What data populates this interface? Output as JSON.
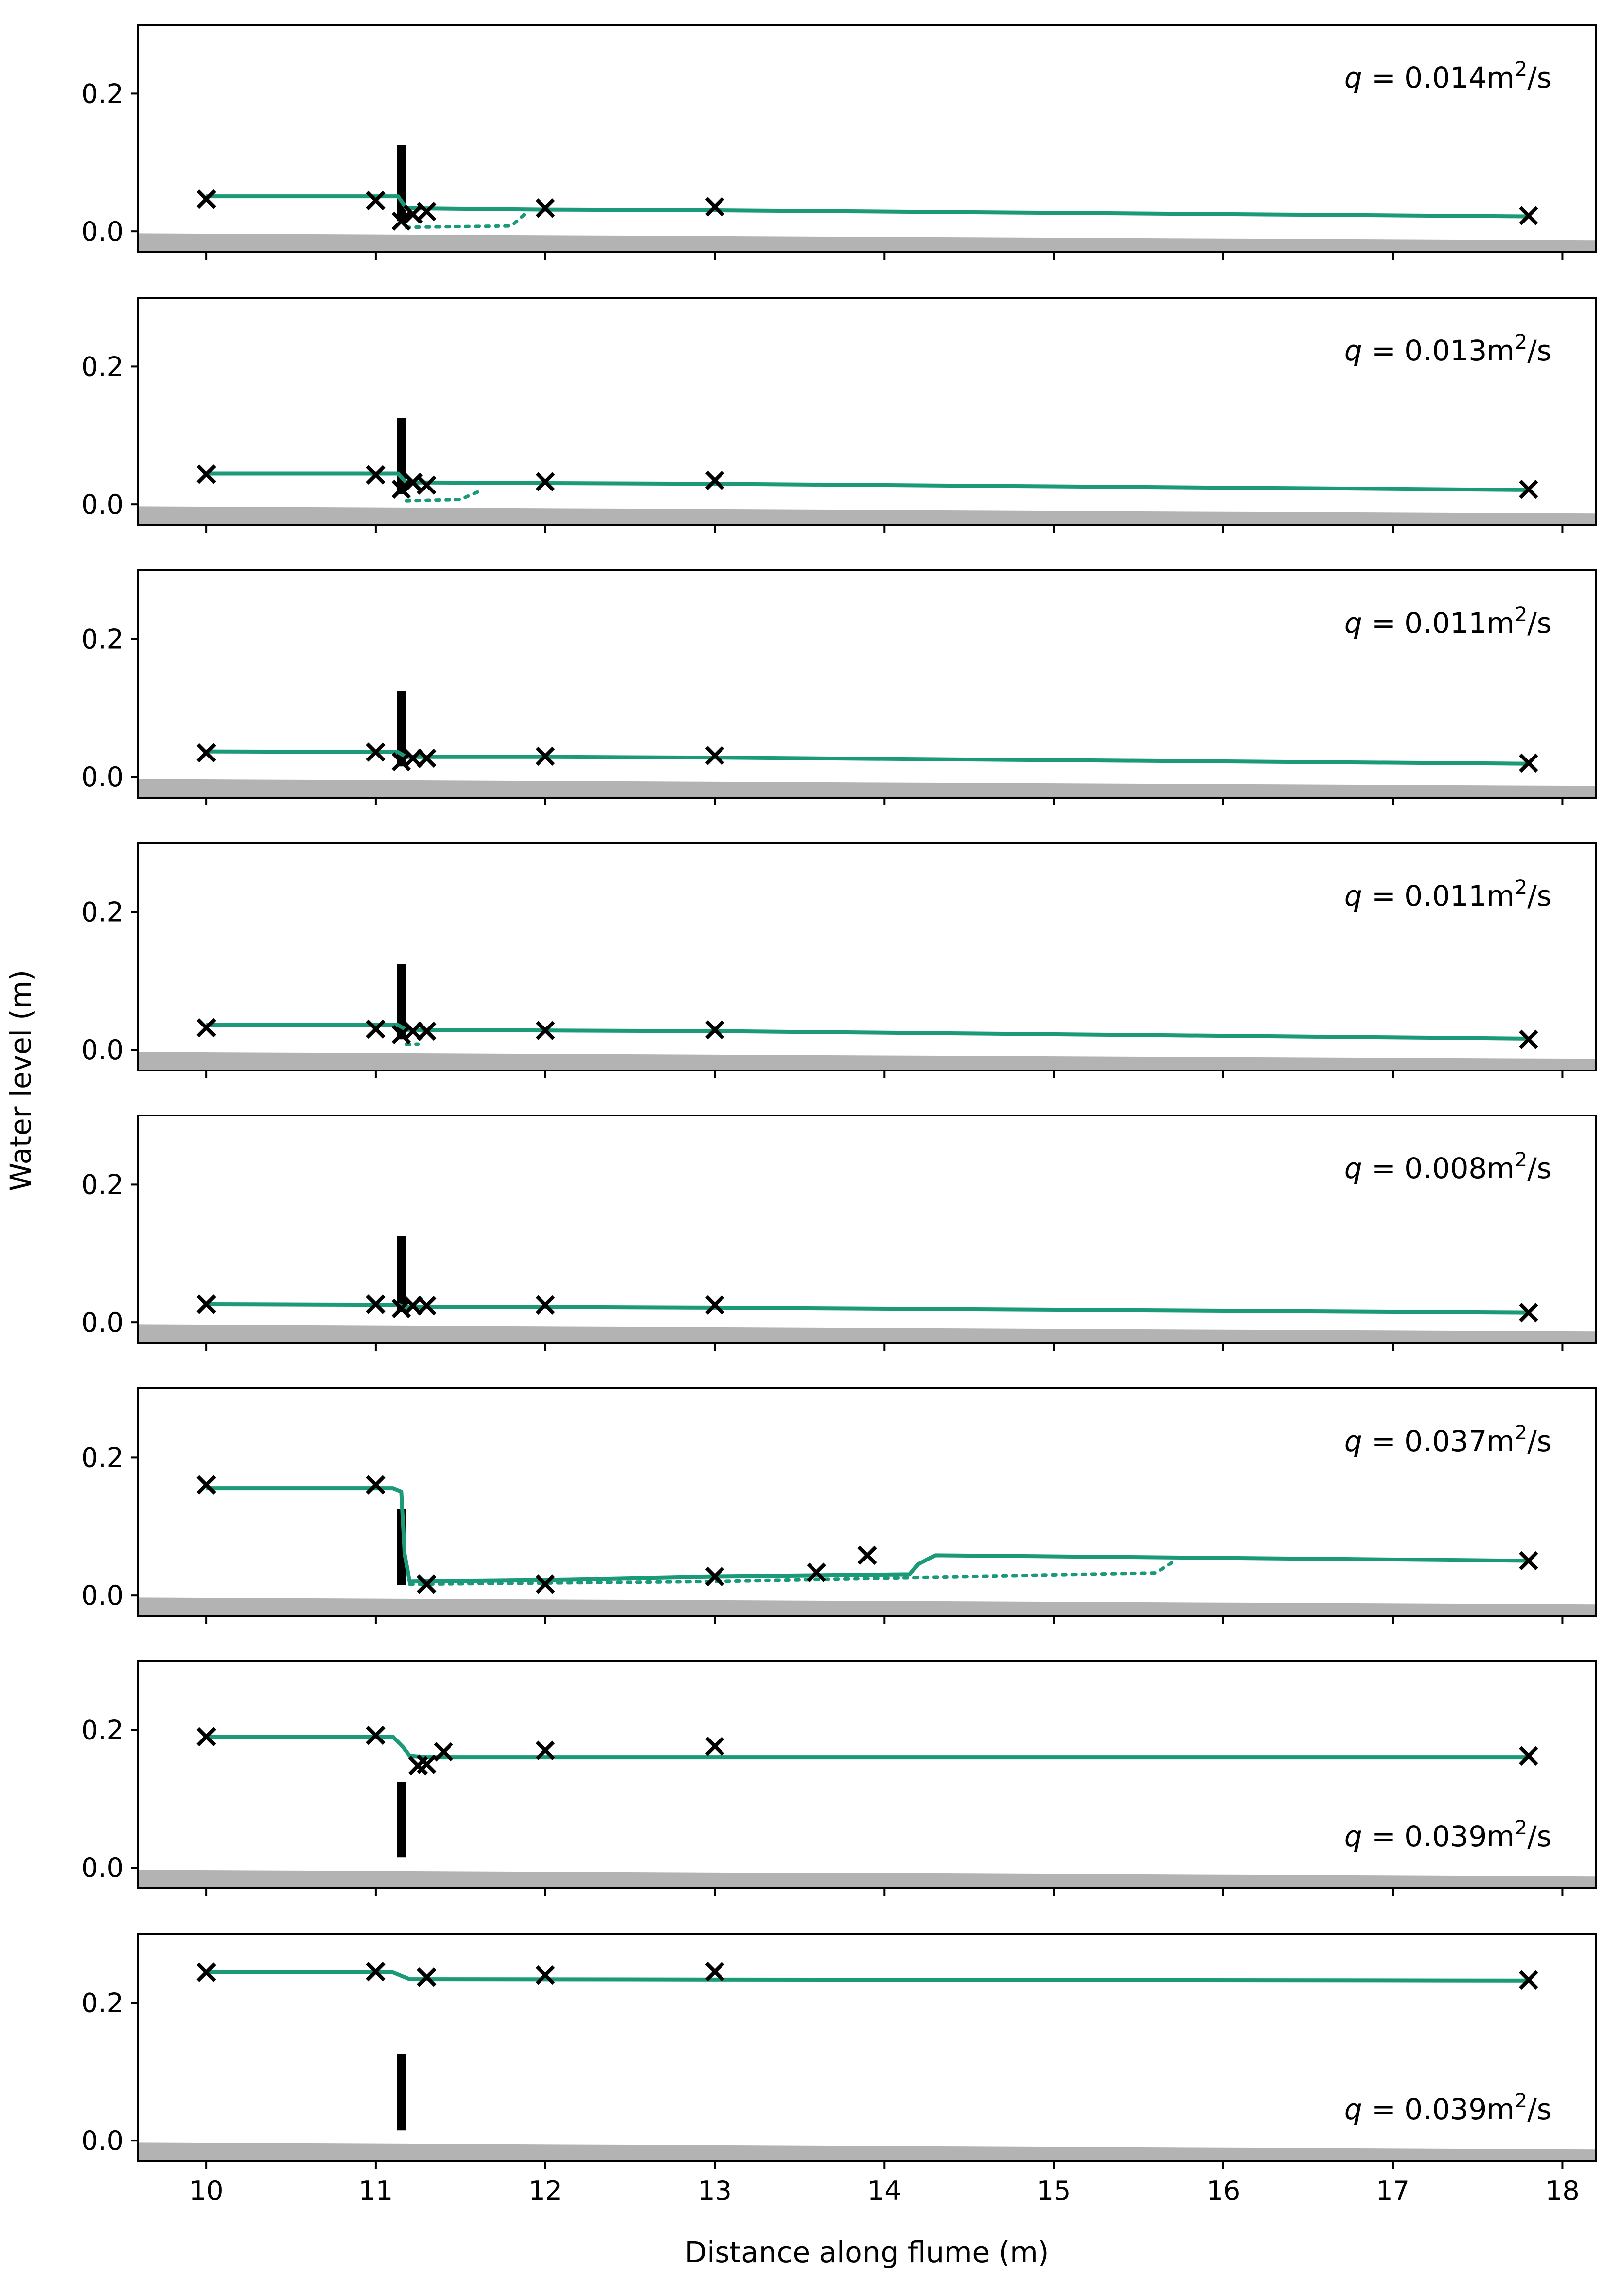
{
  "chart_data": {
    "type": "line",
    "xlabel": "Distance along flume (m)",
    "ylabel": "Water level (m)",
    "xlim": [
      9.6,
      18.2
    ],
    "ylim": [
      -0.03,
      0.3
    ],
    "xticks": [
      10,
      11,
      12,
      13,
      14,
      15,
      16,
      17,
      18
    ],
    "yticks": [
      0.0,
      0.2
    ],
    "colors": {
      "model": "#1a9a78",
      "obs": "#000000",
      "bed": "#b3b3b3",
      "weir": "#000000"
    },
    "weir": {
      "x": 11.15,
      "bottom": 0.015,
      "top": 0.125
    },
    "bed": {
      "x": [
        9.6,
        18.2
      ],
      "y": [
        -0.003,
        -0.013
      ]
    },
    "panels": [
      {
        "q_label": "0.014m",
        "q_prefix": "q",
        "q_eq": " = ",
        "q_sup": "2",
        "q_unit": "/s",
        "label_position": "top-right",
        "solid": [
          [
            10.0,
            0.051
          ],
          [
            11.13,
            0.051
          ],
          [
            11.18,
            0.034
          ],
          [
            12.0,
            0.032
          ],
          [
            13.0,
            0.031
          ],
          [
            17.8,
            0.022
          ]
        ],
        "dotted": [
          [
            11.18,
            0.006
          ],
          [
            11.8,
            0.008
          ],
          [
            11.9,
            0.03
          ]
        ],
        "obs": [
          [
            10.0,
            0.047
          ],
          [
            11.0,
            0.045
          ],
          [
            11.15,
            0.015
          ],
          [
            11.22,
            0.025
          ],
          [
            11.3,
            0.029
          ],
          [
            12.0,
            0.034
          ],
          [
            13.0,
            0.036
          ],
          [
            17.8,
            0.023
          ]
        ]
      },
      {
        "q_label": "0.013m",
        "q_prefix": "q",
        "q_eq": " = ",
        "q_sup": "2",
        "q_unit": "/s",
        "label_position": "top-right",
        "solid": [
          [
            10.0,
            0.045
          ],
          [
            11.13,
            0.045
          ],
          [
            11.18,
            0.032
          ],
          [
            12.0,
            0.031
          ],
          [
            13.0,
            0.03
          ],
          [
            17.8,
            0.021
          ]
        ],
        "dotted": [
          [
            11.18,
            0.005
          ],
          [
            11.5,
            0.007
          ],
          [
            11.6,
            0.018
          ]
        ],
        "obs": [
          [
            10.0,
            0.044
          ],
          [
            11.0,
            0.043
          ],
          [
            11.15,
            0.022
          ],
          [
            11.22,
            0.032
          ],
          [
            11.3,
            0.028
          ],
          [
            12.0,
            0.033
          ],
          [
            13.0,
            0.035
          ],
          [
            17.8,
            0.022
          ]
        ]
      },
      {
        "q_label": "0.011m",
        "q_prefix": "q",
        "q_eq": " = ",
        "q_sup": "2",
        "q_unit": "/s",
        "label_position": "top-right",
        "solid": [
          [
            10.0,
            0.037
          ],
          [
            11.13,
            0.036
          ],
          [
            11.18,
            0.029
          ],
          [
            12.0,
            0.029
          ],
          [
            13.0,
            0.028
          ],
          [
            17.8,
            0.019
          ]
        ],
        "dotted": [],
        "obs": [
          [
            10.0,
            0.035
          ],
          [
            11.0,
            0.036
          ],
          [
            11.15,
            0.022
          ],
          [
            11.22,
            0.027
          ],
          [
            11.3,
            0.027
          ],
          [
            12.0,
            0.03
          ],
          [
            13.0,
            0.031
          ],
          [
            17.8,
            0.02
          ]
        ]
      },
      {
        "q_label": "0.011m",
        "q_prefix": "q",
        "q_eq": " = ",
        "q_sup": "2",
        "q_unit": "/s",
        "label_position": "top-right",
        "solid": [
          [
            10.0,
            0.036
          ],
          [
            11.13,
            0.036
          ],
          [
            11.18,
            0.029
          ],
          [
            12.0,
            0.028
          ],
          [
            13.0,
            0.027
          ],
          [
            17.8,
            0.016
          ]
        ],
        "dotted": [
          [
            11.18,
            0.008
          ],
          [
            11.25,
            0.008
          ]
        ],
        "obs": [
          [
            10.0,
            0.032
          ],
          [
            11.0,
            0.03
          ],
          [
            11.15,
            0.022
          ],
          [
            11.22,
            0.027
          ],
          [
            11.3,
            0.027
          ],
          [
            12.0,
            0.028
          ],
          [
            13.0,
            0.029
          ],
          [
            17.8,
            0.015
          ]
        ]
      },
      {
        "q_label": "0.008m",
        "q_prefix": "q",
        "q_eq": " = ",
        "q_sup": "2",
        "q_unit": "/s",
        "label_position": "top-right",
        "solid": [
          [
            10.0,
            0.026
          ],
          [
            11.13,
            0.025
          ],
          [
            11.18,
            0.022
          ],
          [
            12.0,
            0.022
          ],
          [
            13.0,
            0.021
          ],
          [
            17.8,
            0.014
          ]
        ],
        "dotted": [],
        "obs": [
          [
            10.0,
            0.026
          ],
          [
            11.0,
            0.026
          ],
          [
            11.15,
            0.02
          ],
          [
            11.22,
            0.024
          ],
          [
            11.3,
            0.024
          ],
          [
            12.0,
            0.025
          ],
          [
            13.0,
            0.025
          ],
          [
            17.8,
            0.014
          ]
        ]
      },
      {
        "q_label": "0.037m",
        "q_prefix": "q",
        "q_eq": " = ",
        "q_sup": "2",
        "q_unit": "/s",
        "label_position": "top-right",
        "solid": [
          [
            10.0,
            0.155
          ],
          [
            11.1,
            0.155
          ],
          [
            11.15,
            0.15
          ],
          [
            11.17,
            0.06
          ],
          [
            11.2,
            0.02
          ],
          [
            12.0,
            0.022
          ],
          [
            13.0,
            0.027
          ],
          [
            14.15,
            0.03
          ],
          [
            14.2,
            0.045
          ],
          [
            14.3,
            0.058
          ],
          [
            17.8,
            0.05
          ]
        ],
        "dotted": [
          [
            11.2,
            0.016
          ],
          [
            13.0,
            0.02
          ],
          [
            15.6,
            0.032
          ],
          [
            15.7,
            0.048
          ]
        ],
        "obs": [
          [
            10.0,
            0.16
          ],
          [
            11.0,
            0.16
          ],
          [
            11.3,
            0.016
          ],
          [
            12.0,
            0.016
          ],
          [
            13.0,
            0.027
          ],
          [
            13.6,
            0.033
          ],
          [
            13.9,
            0.058
          ],
          [
            17.8,
            0.05
          ]
        ]
      },
      {
        "q_label": "0.039m",
        "q_prefix": "q",
        "q_eq": " = ",
        "q_sup": "2",
        "q_unit": "/s",
        "label_position": "bottom-right",
        "solid": [
          [
            10.0,
            0.19
          ],
          [
            11.05,
            0.19
          ],
          [
            11.1,
            0.19
          ],
          [
            11.16,
            0.175
          ],
          [
            11.2,
            0.162
          ],
          [
            11.3,
            0.16
          ],
          [
            17.8,
            0.16
          ]
        ],
        "dotted": [],
        "obs": [
          [
            10.0,
            0.19
          ],
          [
            11.0,
            0.192
          ],
          [
            11.25,
            0.148
          ],
          [
            11.3,
            0.15
          ],
          [
            11.4,
            0.168
          ],
          [
            12.0,
            0.17
          ],
          [
            13.0,
            0.176
          ],
          [
            17.8,
            0.162
          ]
        ]
      },
      {
        "q_label": "0.039m",
        "q_prefix": "q",
        "q_eq": " = ",
        "q_sup": "2",
        "q_unit": "/s",
        "label_position": "bottom-right",
        "solid": [
          [
            10.0,
            0.244
          ],
          [
            11.1,
            0.244
          ],
          [
            11.2,
            0.234
          ],
          [
            17.8,
            0.232
          ]
        ],
        "dotted": [],
        "obs": [
          [
            10.0,
            0.244
          ],
          [
            11.0,
            0.245
          ],
          [
            11.3,
            0.237
          ],
          [
            12.0,
            0.24
          ],
          [
            13.0,
            0.245
          ],
          [
            17.8,
            0.233
          ]
        ]
      }
    ]
  }
}
